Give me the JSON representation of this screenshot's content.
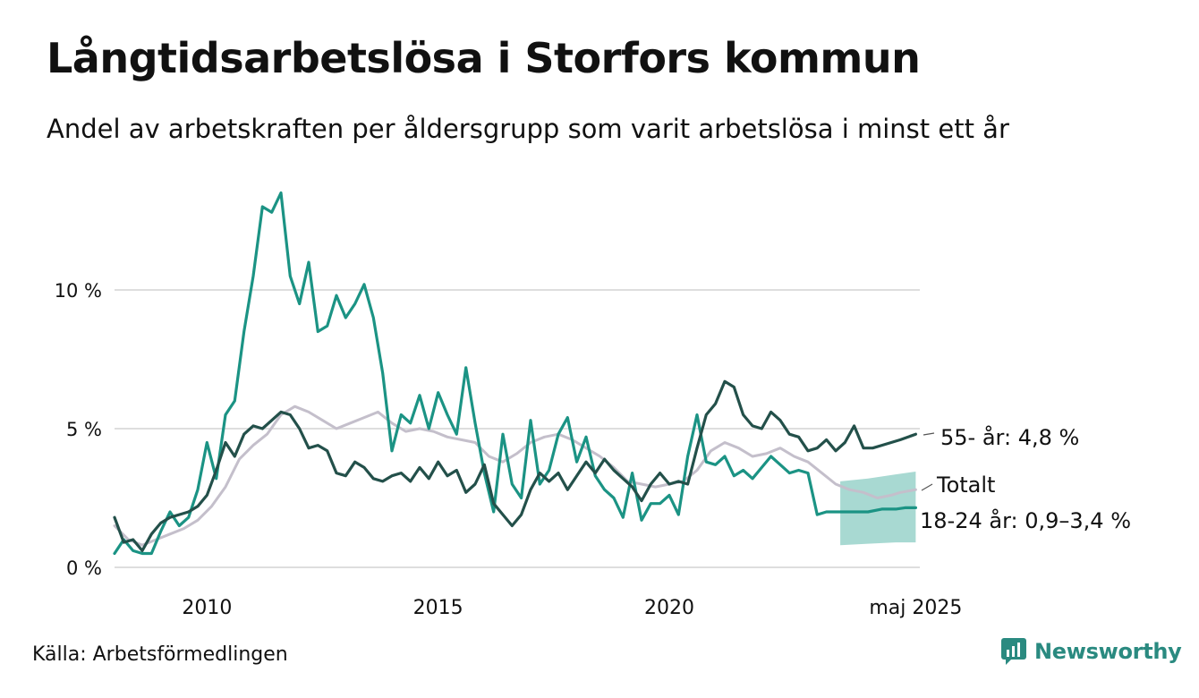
{
  "title": "Långtidsarbetslösa i Storfors kommun",
  "subtitle": "Andel av arbetskraften per åldersgrupp som varit arbetslösa i minst ett år",
  "source": "Källa: Arbetsförmedlingen",
  "brand": {
    "name": "Newsworthy",
    "icon": "newsworthy-logo-icon"
  },
  "colors": {
    "young": "#1b9384",
    "old": "#23504a",
    "total": "#c4bfcb",
    "band": "#a8d9d2",
    "grid": "#dedede"
  },
  "chart_data": {
    "type": "line",
    "y_ticks": [
      {
        "value": 0,
        "label": "0 %"
      },
      {
        "value": 5,
        "label": "5 %"
      },
      {
        "value": 10,
        "label": "10 %"
      }
    ],
    "x_ticks": [
      {
        "value": 2010,
        "label": "2010"
      },
      {
        "value": 2015,
        "label": "2015"
      },
      {
        "value": 2020,
        "label": "2020"
      },
      {
        "value": 2025.33,
        "label": "maj 2025"
      }
    ],
    "xlim": [
      2008.0,
      2025.42
    ],
    "ylim": [
      0,
      14
    ],
    "grid": true,
    "series": [
      {
        "key": "total",
        "name": "Totalt",
        "label": "Totalt",
        "x": [
          2008.0,
          2008.3,
          2008.6,
          2008.9,
          2009.2,
          2009.5,
          2009.8,
          2010.1,
          2010.4,
          2010.7,
          2011.0,
          2011.3,
          2011.6,
          2011.9,
          2012.2,
          2012.5,
          2012.8,
          2013.1,
          2013.4,
          2013.7,
          2014.0,
          2014.3,
          2014.6,
          2014.9,
          2015.2,
          2015.5,
          2015.8,
          2016.1,
          2016.4,
          2016.7,
          2017.0,
          2017.3,
          2017.6,
          2017.9,
          2018.2,
          2018.5,
          2018.8,
          2019.1,
          2019.4,
          2019.7,
          2020.0,
          2020.3,
          2020.6,
          2020.9,
          2021.2,
          2021.5,
          2021.8,
          2022.1,
          2022.4,
          2022.7,
          2023.0,
          2023.3,
          2023.6,
          2023.9,
          2024.2,
          2024.5,
          2024.8,
          2025.0,
          2025.33
        ],
        "values": [
          1.5,
          1.0,
          0.8,
          1.0,
          1.2,
          1.4,
          1.7,
          2.2,
          2.9,
          3.9,
          4.4,
          4.8,
          5.5,
          5.8,
          5.6,
          5.3,
          5.0,
          5.2,
          5.4,
          5.6,
          5.2,
          4.9,
          5.0,
          4.9,
          4.7,
          4.6,
          4.5,
          4.0,
          3.8,
          4.1,
          4.5,
          4.7,
          4.8,
          4.6,
          4.3,
          4.0,
          3.6,
          3.1,
          3.0,
          2.9,
          3.0,
          3.1,
          3.5,
          4.2,
          4.5,
          4.3,
          4.0,
          4.1,
          4.3,
          4.0,
          3.8,
          3.4,
          3.0,
          2.8,
          2.7,
          2.5,
          2.6,
          2.7,
          2.8
        ]
      },
      {
        "key": "old",
        "name": "55- år",
        "label": "55- år: 4,8 %",
        "x": [
          2008.0,
          2008.2,
          2008.4,
          2008.6,
          2008.8,
          2009.0,
          2009.2,
          2009.4,
          2009.6,
          2009.8,
          2010.0,
          2010.2,
          2010.4,
          2010.6,
          2010.8,
          2011.0,
          2011.2,
          2011.4,
          2011.6,
          2011.8,
          2012.0,
          2012.2,
          2012.4,
          2012.6,
          2012.8,
          2013.0,
          2013.2,
          2013.4,
          2013.6,
          2013.8,
          2014.0,
          2014.2,
          2014.4,
          2014.6,
          2014.8,
          2015.0,
          2015.2,
          2015.4,
          2015.6,
          2015.8,
          2016.0,
          2016.2,
          2016.4,
          2016.6,
          2016.8,
          2017.0,
          2017.2,
          2017.4,
          2017.6,
          2017.8,
          2018.0,
          2018.2,
          2018.4,
          2018.6,
          2018.8,
          2019.0,
          2019.2,
          2019.4,
          2019.6,
          2019.8,
          2020.0,
          2020.2,
          2020.4,
          2020.6,
          2020.8,
          2021.0,
          2021.2,
          2021.4,
          2021.6,
          2021.8,
          2022.0,
          2022.2,
          2022.4,
          2022.6,
          2022.8,
          2023.0,
          2023.2,
          2023.4,
          2023.6,
          2023.8,
          2024.0,
          2024.2,
          2024.4,
          2024.6,
          2024.8,
          2025.0,
          2025.33
        ],
        "values": [
          1.8,
          0.9,
          1.0,
          0.6,
          1.2,
          1.6,
          1.8,
          1.9,
          2.0,
          2.2,
          2.6,
          3.5,
          4.5,
          4.0,
          4.8,
          5.1,
          5.0,
          5.3,
          5.6,
          5.5,
          5.0,
          4.3,
          4.4,
          4.2,
          3.4,
          3.3,
          3.8,
          3.6,
          3.2,
          3.1,
          3.3,
          3.4,
          3.1,
          3.6,
          3.2,
          3.8,
          3.3,
          3.5,
          2.7,
          3.0,
          3.7,
          2.3,
          1.9,
          1.5,
          1.9,
          2.8,
          3.4,
          3.1,
          3.4,
          2.8,
          3.3,
          3.8,
          3.4,
          3.9,
          3.5,
          3.2,
          2.9,
          2.4,
          3.0,
          3.4,
          3.0,
          3.1,
          3.0,
          4.3,
          5.5,
          5.9,
          6.7,
          6.5,
          5.5,
          5.1,
          5.0,
          5.6,
          5.3,
          4.8,
          4.7,
          4.2,
          4.3,
          4.6,
          4.2,
          4.5,
          5.1,
          4.3,
          4.3,
          4.4,
          4.5,
          4.6,
          4.8
        ]
      },
      {
        "key": "young",
        "name": "18-24 år",
        "label": "18-24 år: 0,9–3,4 %",
        "x": [
          2008.0,
          2008.2,
          2008.4,
          2008.6,
          2008.8,
          2009.0,
          2009.2,
          2009.4,
          2009.6,
          2009.8,
          2010.0,
          2010.2,
          2010.4,
          2010.6,
          2010.8,
          2011.0,
          2011.2,
          2011.4,
          2011.6,
          2011.8,
          2012.0,
          2012.2,
          2012.4,
          2012.6,
          2012.8,
          2013.0,
          2013.2,
          2013.4,
          2013.6,
          2013.8,
          2014.0,
          2014.2,
          2014.4,
          2014.6,
          2014.8,
          2015.0,
          2015.2,
          2015.4,
          2015.6,
          2015.8,
          2016.0,
          2016.2,
          2016.4,
          2016.6,
          2016.8,
          2017.0,
          2017.2,
          2017.4,
          2017.6,
          2017.8,
          2018.0,
          2018.2,
          2018.4,
          2018.6,
          2018.8,
          2019.0,
          2019.2,
          2019.4,
          2019.6,
          2019.8,
          2020.0,
          2020.2,
          2020.4,
          2020.6,
          2020.8,
          2021.0,
          2021.2,
          2021.4,
          2021.6,
          2021.8,
          2022.0,
          2022.2,
          2022.4,
          2022.6,
          2022.8,
          2023.0,
          2023.2,
          2023.4,
          2023.6,
          2023.8,
          2024.0,
          2024.3,
          2024.6,
          2024.9,
          2025.1,
          2025.33
        ],
        "values": [
          0.5,
          1.0,
          0.6,
          0.5,
          0.5,
          1.3,
          2.0,
          1.5,
          1.8,
          2.8,
          4.5,
          3.2,
          5.5,
          6.0,
          8.5,
          10.5,
          13.0,
          12.8,
          13.5,
          10.5,
          9.5,
          11.0,
          8.5,
          8.7,
          9.8,
          9.0,
          9.5,
          10.2,
          9.0,
          7.0,
          4.2,
          5.5,
          5.2,
          6.2,
          5.0,
          6.3,
          5.5,
          4.8,
          7.2,
          5.2,
          3.4,
          2.0,
          4.8,
          3.0,
          2.5,
          5.3,
          3.0,
          3.5,
          4.8,
          5.4,
          3.8,
          4.7,
          3.3,
          2.8,
          2.5,
          1.8,
          3.4,
          1.7,
          2.3,
          2.3,
          2.6,
          1.9,
          4.0,
          5.5,
          3.8,
          3.7,
          4.0,
          3.3,
          3.5,
          3.2,
          3.6,
          4.0,
          3.7,
          3.4,
          3.5,
          3.4,
          1.9,
          2.0,
          2.0,
          2.0,
          2.0,
          2.0,
          2.1,
          2.1,
          2.15,
          2.15
        ],
        "band_x": [
          2023.7,
          2024.3,
          2024.9,
          2025.33
        ],
        "band_low": [
          0.8,
          0.85,
          0.9,
          0.9
        ],
        "band_high": [
          3.1,
          3.2,
          3.35,
          3.45
        ]
      }
    ]
  }
}
